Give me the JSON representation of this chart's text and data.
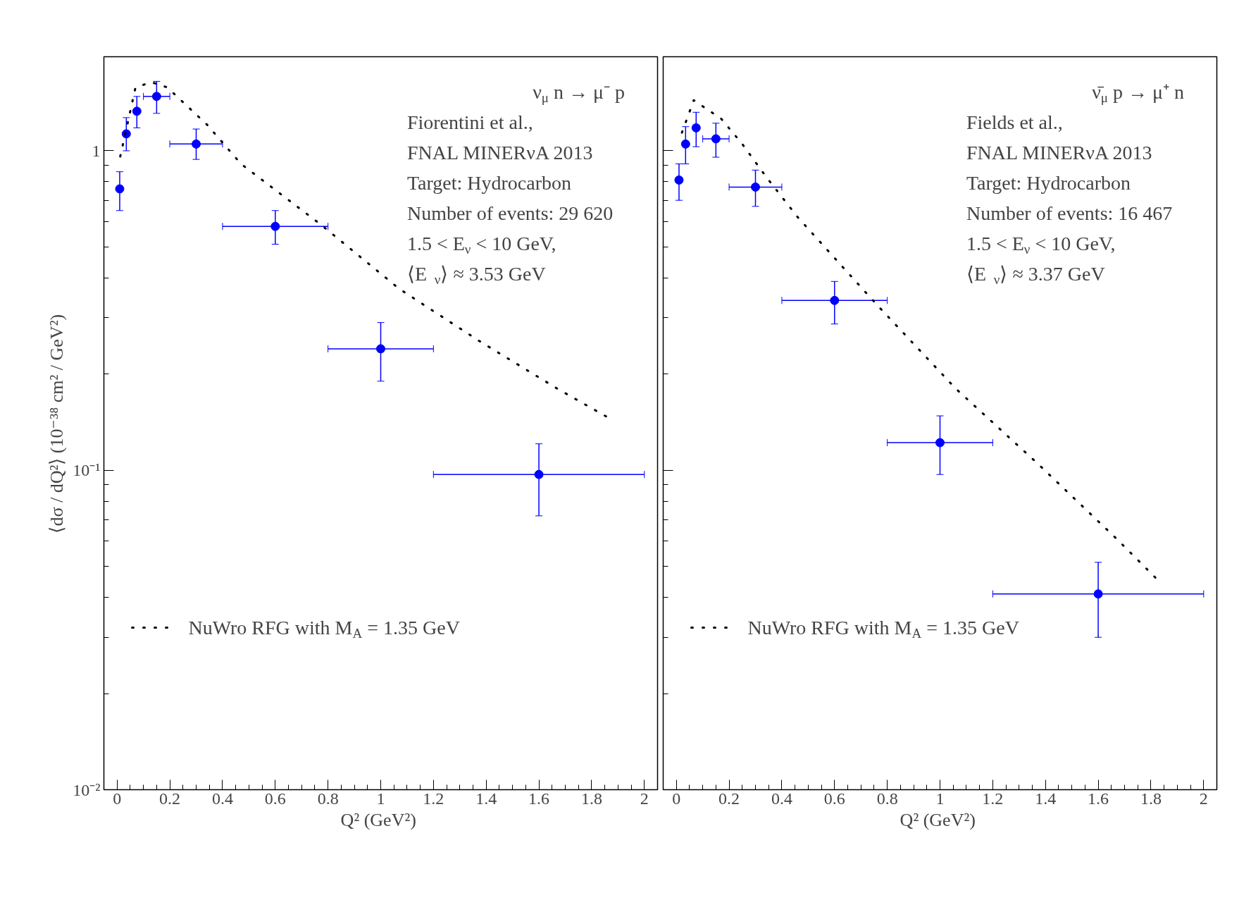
{
  "chart_data": [
    {
      "type": "scatter",
      "xlabel": "Q²  (GeV²)",
      "ylabel": "⟨dσ / dQ²⟩  (10⁻³⁸ cm² / GeV²)",
      "log": "y",
      "xlim": [
        -0.05,
        2.05
      ],
      "ylim": [
        0.01,
        1.97
      ],
      "xticks": [
        0,
        0.2,
        0.4,
        0.6,
        0.8,
        1,
        1.2,
        1.4,
        1.6,
        1.8,
        2
      ],
      "yticks": [
        {
          "value": 0.01,
          "label": "10⁻²"
        },
        {
          "value": 0.1,
          "label": "10⁻¹"
        },
        1
      ],
      "grid": false,
      "legend": "left",
      "marker": "circle",
      "annotations": [
        "ν$_{μ}$ n → μ⁻ p",
        "Fiorentini et al.,",
        "FNAL MINERνA 2013",
        "Target: Hydrocarbon",
        "Number of events: 29 620",
        "1.5 < E$_{ν}$ < 10 GeV,",
        "⟨E$_{ν}$⟩ ≈ 3.53 GeV"
      ],
      "series": [
        {
          "type": "scatter",
          "color": "#0000ff",
          "x": [
            0.01,
            0.035,
            0.075,
            0.15,
            0.3,
            0.6,
            1.0,
            1.6
          ],
          "values": [
            0.76,
            1.13,
            1.33,
            1.48,
            1.05,
            0.58,
            0.24,
            0.097
          ],
          "errors": [
            [
              0.65,
              0.86
            ],
            [
              1.0,
              1.27
            ],
            [
              1.18,
              1.48
            ],
            [
              1.31,
              1.65
            ],
            [
              0.94,
              1.17
            ],
            [
              0.51,
              0.65
            ],
            [
              0.19,
              0.29
            ],
            [
              0.072,
              0.121
            ]
          ],
          "xerrors": [
            null,
            null,
            null,
            [
              0.1,
              0.2
            ],
            [
              0.2,
              0.4
            ],
            [
              0.4,
              0.8
            ],
            [
              0.8,
              1.2
            ],
            [
              1.2,
              2.0
            ]
          ]
        },
        {
          "type": "line",
          "name": "NuWro RFG with M$_{A}$ = 1.35 GeV",
          "color": "#000000",
          "line_style": "dotted",
          "marker": "none",
          "x": [
            0.012,
            0.07,
            0.13,
            0.19,
            0.34,
            0.47,
            0.77,
            1.07,
            1.37,
            1.67,
            1.87
          ],
          "values": [
            0.96,
            1.58,
            1.64,
            1.58,
            1.21,
            0.91,
            0.59,
            0.37,
            0.255,
            0.18,
            0.145
          ]
        }
      ]
    },
    {
      "type": "scatter",
      "xlabel": "Q²  (GeV²)",
      "log": "y",
      "tick_labels": "x",
      "xlim": [
        -0.05,
        2.05
      ],
      "ylim": [
        0.01,
        1.97
      ],
      "xticks": [
        0,
        0.2,
        0.4,
        0.6,
        0.8,
        1,
        1.2,
        1.4,
        1.6,
        1.8,
        2
      ],
      "yticks": [
        {
          "value": 0.01,
          "label": null
        },
        {
          "value": 0.1,
          "label": null
        },
        {
          "value": 1,
          "label": null
        }
      ],
      "grid": false,
      "legend": "left",
      "marker": "circle",
      "annotations": [
        "ν̄$_{μ}$ p → μ⁺ n",
        "Fields et al.,",
        "FNAL MINERνA 2013",
        "Target: Hydrocarbon",
        "Number of events: 16 467",
        "1.5 < E$_{ν}$ < 10 GeV,",
        "⟨E$_{ν}$⟩ ≈ 3.37 GeV"
      ],
      "series": [
        {
          "type": "scatter",
          "color": "#0000ff",
          "x": [
            0.01,
            0.035,
            0.075,
            0.15,
            0.3,
            0.6,
            1.0,
            1.6
          ],
          "values": [
            0.81,
            1.05,
            1.18,
            1.09,
            0.77,
            0.34,
            0.122,
            0.041
          ],
          "errors": [
            [
              0.7,
              0.91
            ],
            [
              0.91,
              1.19
            ],
            [
              1.03,
              1.32
            ],
            [
              0.955,
              1.22
            ],
            [
              0.67,
              0.87
            ],
            [
              0.287,
              0.39
            ],
            [
              0.097,
              0.148
            ],
            [
              0.03,
              0.0515
            ]
          ],
          "xerrors": [
            null,
            null,
            null,
            [
              0.1,
              0.2
            ],
            [
              0.2,
              0.4
            ],
            [
              0.4,
              0.8
            ],
            [
              0.8,
              1.2
            ],
            [
              1.2,
              2.0
            ]
          ]
        },
        {
          "type": "line",
          "name": "NuWro RFG with M$_{A}$ = 1.35 GeV",
          "color": "#000000",
          "line_style": "dotted",
          "marker": "none",
          "x": [
            0.021,
            0.066,
            0.11,
            0.17,
            0.25,
            0.34,
            0.46,
            0.76,
            1.06,
            1.37,
            1.67,
            1.83
          ],
          "values": [
            1.14,
            1.44,
            1.36,
            1.26,
            1.05,
            0.83,
            0.62,
            0.33,
            0.18,
            0.105,
            0.061,
            0.045
          ]
        }
      ]
    }
  ]
}
